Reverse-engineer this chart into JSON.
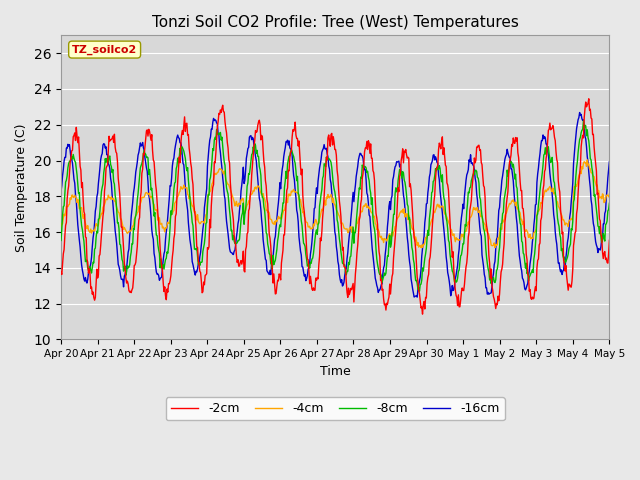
{
  "title": "Tonzi Soil CO2 Profile: Tree (West) Temperatures",
  "xlabel": "Time",
  "ylabel": "Soil Temperature (C)",
  "ylim": [
    10,
    27
  ],
  "yticks": [
    10,
    12,
    14,
    16,
    18,
    20,
    22,
    24,
    26
  ],
  "legend_label": "TZ_soilco2",
  "series_labels": [
    "-2cm",
    "-4cm",
    "-8cm",
    "-16cm"
  ],
  "series_colors": [
    "#ff0000",
    "#ffa500",
    "#00bb00",
    "#0000cc"
  ],
  "background_color": "#e8e8e8",
  "plot_bg_color": "#d8d8d8",
  "n_days": 15,
  "points_per_day": 48,
  "xtick_labels": [
    "Apr 20",
    "Apr 21",
    "Apr 22",
    "Apr 23",
    "Apr 24",
    "Apr 25",
    "Apr 26",
    "Apr 27",
    "Apr 28",
    "Apr 29",
    "Apr 30",
    "May 1",
    "May 2",
    "May 3",
    "May 4",
    "May 5"
  ],
  "base": 17.0,
  "amp_2cm": 4.5,
  "amp_4cm": 1.0,
  "amp_8cm": 3.2,
  "amp_16cm": 3.8,
  "phase_2cm": 0.0,
  "phase_4cm": 0.05,
  "phase_8cm": 0.1,
  "phase_16cm": 0.2,
  "trend": [
    0.0,
    0.0,
    0.2,
    0.5,
    1.5,
    0.5,
    0.3,
    0.0,
    -0.5,
    -0.8,
    -0.5,
    -0.7,
    -0.3,
    0.5,
    1.8,
    2.5
  ]
}
